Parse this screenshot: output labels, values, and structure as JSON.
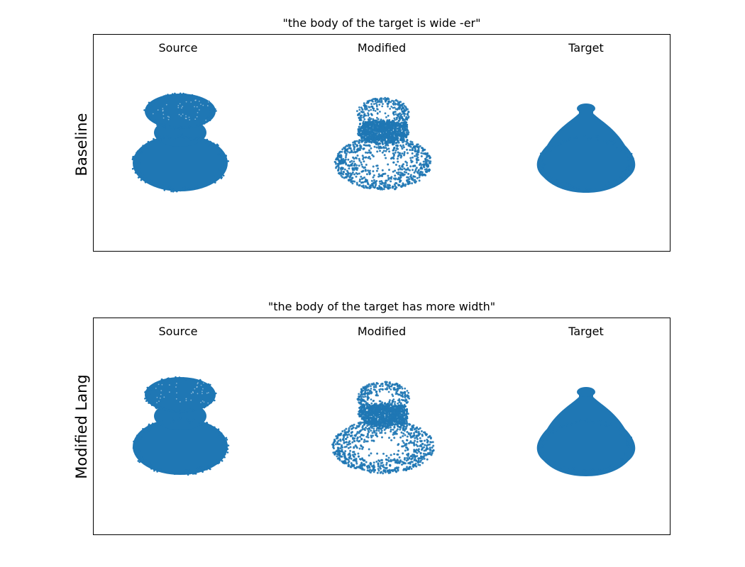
{
  "rows": [
    {
      "row_label": "Baseline",
      "caption": "\"the body of the target is wide -er\"",
      "columns": [
        {
          "label": "Source",
          "shape": "source"
        },
        {
          "label": "Modified",
          "shape": "modified"
        },
        {
          "label": "Target",
          "shape": "target"
        }
      ]
    },
    {
      "row_label": "Modified Lang",
      "caption": "\"the body of the target has more width\"",
      "columns": [
        {
          "label": "Source",
          "shape": "source"
        },
        {
          "label": "Modified",
          "shape": "modified"
        },
        {
          "label": "Target",
          "shape": "target"
        }
      ]
    }
  ],
  "point_color": "#1f77b4"
}
